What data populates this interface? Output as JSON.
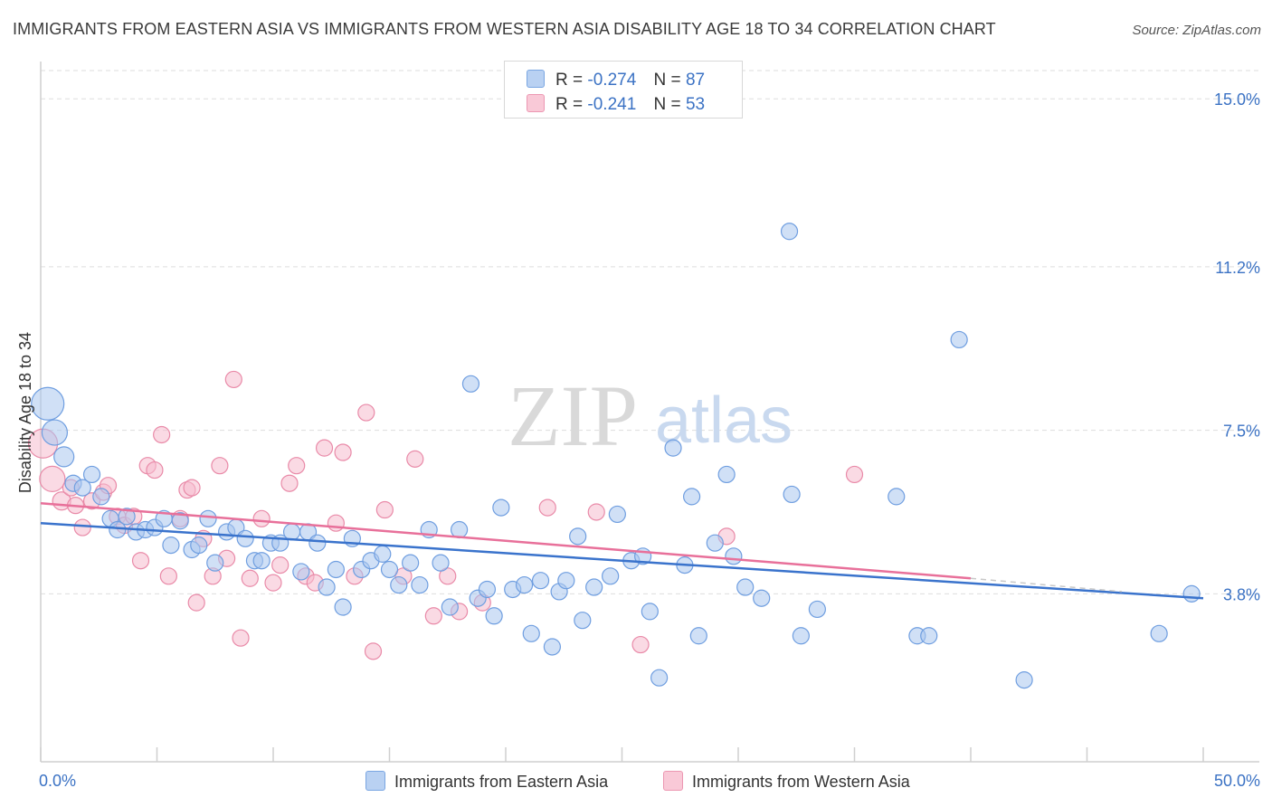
{
  "header": {
    "title": "IMMIGRANTS FROM EASTERN ASIA VS IMMIGRANTS FROM WESTERN ASIA DISABILITY AGE 18 TO 34 CORRELATION CHART",
    "source": "Source: ZipAtlas.com"
  },
  "watermark": {
    "zip": "ZIP",
    "atlas": "atlas"
  },
  "legend": {
    "rows": [
      {
        "r_label": "R =",
        "r_value": "-0.274",
        "n_label": "N =",
        "n_value": "87"
      },
      {
        "r_label": "R =",
        "r_value": "-0.241",
        "n_label": "N =",
        "n_value": "53"
      }
    ]
  },
  "colors": {
    "blue_fill": "#a9c6ef",
    "blue_stroke": "#6f9ee0",
    "blue_line": "#3a73cc",
    "pink_fill": "#f6bccd",
    "pink_stroke": "#e98aa8",
    "pink_line": "#e8709a",
    "grid": "#dddddd",
    "tick_label": "#3b72c4"
  },
  "chart_data": {
    "type": "scatter",
    "title": "IMMIGRANTS FROM EASTERN ASIA VS IMMIGRANTS FROM WESTERN ASIA DISABILITY AGE 18 TO 34 CORRELATION CHART",
    "xlabel": "",
    "ylabel": "Disability Age 18 to 34",
    "xlim": [
      0,
      50
    ],
    "ylim": [
      0,
      15.7
    ],
    "x_tick_labels": [
      "0.0%",
      "50.0%"
    ],
    "y_ticks": [
      3.8,
      7.5,
      11.2,
      15.0
    ],
    "y_tick_labels": [
      "3.8%",
      "7.5%",
      "11.2%",
      "15.0%"
    ],
    "grid": true,
    "legend_position": "top-center",
    "series": [
      {
        "name": "Immigrants from Eastern Asia",
        "color": "#a9c6ef",
        "trend": {
          "x": [
            0,
            50
          ],
          "y": [
            5.4,
            3.7
          ]
        },
        "points": [
          [
            0.3,
            8.1,
            18
          ],
          [
            0.6,
            7.45,
            14
          ],
          [
            1.0,
            6.9,
            11
          ],
          [
            1.4,
            6.3,
            9
          ],
          [
            1.8,
            6.2,
            9
          ],
          [
            2.2,
            6.5,
            9
          ],
          [
            2.6,
            6.0,
            9
          ],
          [
            3.0,
            5.5,
            9
          ],
          [
            3.3,
            5.25,
            9
          ],
          [
            3.7,
            5.55,
            9
          ],
          [
            4.1,
            5.2,
            9
          ],
          [
            4.5,
            5.25,
            9
          ],
          [
            4.9,
            5.3,
            9
          ],
          [
            5.3,
            5.5,
            9
          ],
          [
            5.6,
            4.9,
            9
          ],
          [
            6.0,
            5.45,
            9
          ],
          [
            6.5,
            4.8,
            9
          ],
          [
            6.8,
            4.9,
            9
          ],
          [
            7.2,
            5.5,
            9
          ],
          [
            7.5,
            4.5,
            9
          ],
          [
            8.0,
            5.2,
            9
          ],
          [
            8.4,
            5.3,
            9
          ],
          [
            8.8,
            5.05,
            9
          ],
          [
            9.2,
            4.55,
            9
          ],
          [
            9.5,
            4.55,
            9
          ],
          [
            9.9,
            4.95,
            9
          ],
          [
            10.3,
            4.95,
            9
          ],
          [
            10.8,
            5.2,
            9
          ],
          [
            11.2,
            4.3,
            9
          ],
          [
            11.5,
            5.2,
            9
          ],
          [
            11.9,
            4.95,
            9
          ],
          [
            12.3,
            3.95,
            9
          ],
          [
            12.7,
            4.35,
            9
          ],
          [
            13.0,
            3.5,
            9
          ],
          [
            13.4,
            5.05,
            9
          ],
          [
            13.8,
            4.35,
            9
          ],
          [
            14.2,
            4.55,
            9
          ],
          [
            14.7,
            4.7,
            9
          ],
          [
            15.0,
            4.35,
            9
          ],
          [
            15.4,
            4.0,
            9
          ],
          [
            15.9,
            4.5,
            9
          ],
          [
            16.3,
            4.0,
            9
          ],
          [
            16.7,
            5.25,
            9
          ],
          [
            17.2,
            4.5,
            9
          ],
          [
            17.6,
            3.5,
            9
          ],
          [
            18.0,
            5.25,
            9
          ],
          [
            18.5,
            8.55,
            9
          ],
          [
            18.8,
            3.7,
            9
          ],
          [
            19.2,
            3.9,
            9
          ],
          [
            19.5,
            3.3,
            9
          ],
          [
            19.8,
            5.75,
            9
          ],
          [
            20.3,
            3.9,
            9
          ],
          [
            20.8,
            4.0,
            9
          ],
          [
            21.1,
            2.9,
            9
          ],
          [
            21.5,
            4.1,
            9
          ],
          [
            22.0,
            2.6,
            9
          ],
          [
            22.3,
            3.85,
            9
          ],
          [
            22.6,
            4.1,
            9
          ],
          [
            23.1,
            5.1,
            9
          ],
          [
            23.3,
            3.2,
            9
          ],
          [
            23.8,
            3.95,
            9
          ],
          [
            24.5,
            4.2,
            9
          ],
          [
            24.8,
            5.6,
            9
          ],
          [
            25.4,
            4.55,
            9
          ],
          [
            25.9,
            4.65,
            9
          ],
          [
            26.2,
            3.4,
            9
          ],
          [
            26.6,
            1.9,
            9
          ],
          [
            27.2,
            7.1,
            9
          ],
          [
            27.7,
            4.45,
            9
          ],
          [
            28.0,
            6.0,
            9
          ],
          [
            28.3,
            2.85,
            9
          ],
          [
            29.0,
            4.95,
            9
          ],
          [
            29.5,
            6.5,
            9
          ],
          [
            29.8,
            4.65,
            9
          ],
          [
            30.3,
            3.95,
            9
          ],
          [
            31.0,
            3.7,
            9
          ],
          [
            32.2,
            12.0,
            9
          ],
          [
            32.3,
            6.05,
            9
          ],
          [
            32.7,
            2.85,
            9
          ],
          [
            33.4,
            3.45,
            9
          ],
          [
            36.8,
            6.0,
            9
          ],
          [
            37.7,
            2.85,
            9
          ],
          [
            38.2,
            2.85,
            9
          ],
          [
            39.5,
            9.55,
            9
          ],
          [
            42.3,
            1.85,
            9
          ],
          [
            48.1,
            2.9,
            9
          ],
          [
            49.5,
            3.8,
            9
          ]
        ]
      },
      {
        "name": "Immigrants from Western Asia",
        "color": "#f6bccd",
        "trend": {
          "x": [
            0,
            40
          ],
          "y": [
            5.85,
            4.15
          ]
        },
        "trend_dashed": {
          "x": [
            40,
            46.5
          ],
          "y": [
            4.15,
            3.85
          ]
        },
        "points": [
          [
            0.1,
            7.2,
            16
          ],
          [
            0.5,
            6.4,
            14
          ],
          [
            0.9,
            5.9,
            10
          ],
          [
            1.3,
            6.2,
            9
          ],
          [
            1.5,
            5.8,
            9
          ],
          [
            1.8,
            5.3,
            9
          ],
          [
            2.2,
            5.9,
            9
          ],
          [
            2.7,
            6.1,
            9
          ],
          [
            2.9,
            6.25,
            9
          ],
          [
            3.3,
            5.55,
            9
          ],
          [
            3.6,
            5.35,
            9
          ],
          [
            4.0,
            5.55,
            9
          ],
          [
            4.3,
            4.55,
            9
          ],
          [
            4.6,
            6.7,
            9
          ],
          [
            4.9,
            6.6,
            9
          ],
          [
            5.2,
            7.4,
            9
          ],
          [
            5.5,
            4.2,
            9
          ],
          [
            6.0,
            5.5,
            9
          ],
          [
            6.3,
            6.15,
            9
          ],
          [
            6.5,
            6.2,
            9
          ],
          [
            6.7,
            3.6,
            9
          ],
          [
            7.0,
            5.05,
            9
          ],
          [
            7.4,
            4.2,
            9
          ],
          [
            7.7,
            6.7,
            9
          ],
          [
            8.0,
            4.6,
            9
          ],
          [
            8.3,
            8.65,
            9
          ],
          [
            8.6,
            2.8,
            9
          ],
          [
            9.0,
            4.15,
            9
          ],
          [
            9.5,
            5.5,
            9
          ],
          [
            10.0,
            4.05,
            9
          ],
          [
            10.3,
            4.45,
            9
          ],
          [
            10.7,
            6.3,
            9
          ],
          [
            11.0,
            6.7,
            9
          ],
          [
            11.4,
            4.2,
            9
          ],
          [
            11.8,
            4.05,
            9
          ],
          [
            12.2,
            7.1,
            9
          ],
          [
            12.7,
            5.4,
            9
          ],
          [
            13.0,
            7.0,
            9
          ],
          [
            13.5,
            4.2,
            9
          ],
          [
            14.0,
            7.9,
            9
          ],
          [
            14.3,
            2.5,
            9
          ],
          [
            14.8,
            5.7,
            9
          ],
          [
            15.6,
            4.2,
            9
          ],
          [
            16.1,
            6.85,
            9
          ],
          [
            16.9,
            3.3,
            9
          ],
          [
            17.5,
            4.2,
            9
          ],
          [
            18.0,
            3.4,
            9
          ],
          [
            19.0,
            3.6,
            9
          ],
          [
            21.8,
            5.75,
            9
          ],
          [
            23.9,
            5.65,
            9
          ],
          [
            25.8,
            2.65,
            9
          ],
          [
            29.5,
            5.1,
            9
          ],
          [
            35.0,
            6.5,
            9
          ]
        ]
      }
    ]
  },
  "bottom_legend": {
    "items": [
      "Immigrants from Eastern Asia",
      "Immigrants from Western Asia"
    ]
  }
}
